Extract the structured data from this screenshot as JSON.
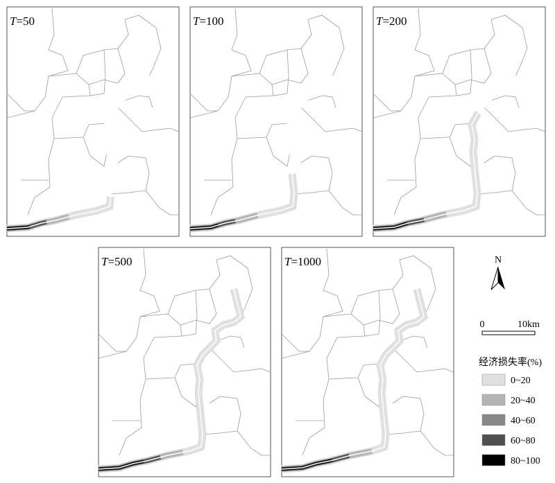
{
  "panels": [
    {
      "symbol": "T",
      "period": "=50"
    },
    {
      "symbol": "T",
      "period": "=100"
    },
    {
      "symbol": "T",
      "period": "=200"
    },
    {
      "symbol": "T",
      "period": "=500"
    },
    {
      "symbol": "T",
      "period": "=1000"
    }
  ],
  "north": "N",
  "scale_bar": {
    "start": "0",
    "end": "10km"
  },
  "legend": {
    "title": "经济损失率(%)",
    "items": [
      {
        "label": "0~20",
        "color": "#e0e0e0"
      },
      {
        "label": "20~40",
        "color": "#b4b4b4"
      },
      {
        "label": "40~60",
        "color": "#878787"
      },
      {
        "label": "60~80",
        "color": "#4f4f4f"
      },
      {
        "label": "80~100",
        "color": "#000000"
      }
    ]
  }
}
